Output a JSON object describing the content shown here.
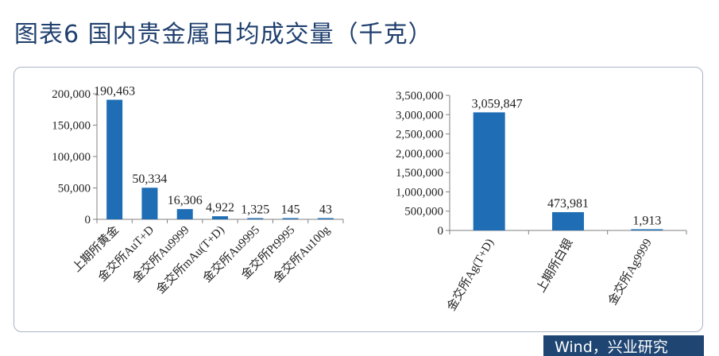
{
  "page": {
    "title": "图表6 国内贵金属日均成交量（千克）",
    "source": "Wind，兴业研究"
  },
  "colors": {
    "bar": "#1f6eb5",
    "axis": "#808080",
    "title": "#1f3f6e",
    "badge": "#1f4673"
  },
  "chart_data": [
    {
      "type": "bar",
      "categories": [
        "上期所黄金",
        "金交所AuT+D",
        "金交所Au9999",
        "金交所mAu(T+D)",
        "金交所Au9995",
        "金交所Pt9995",
        "金交所Au100g"
      ],
      "values": [
        190463,
        50334,
        16306,
        4922,
        1325,
        145,
        43
      ],
      "data_labels": [
        "190,463",
        "50,334",
        "16,306",
        "4,922",
        "1,325",
        "145",
        "43"
      ],
      "ylim": [
        0,
        200000
      ],
      "yticks": [
        0,
        50000,
        100000,
        150000,
        200000
      ],
      "ytick_labels": [
        "0",
        "50,000",
        "100,000",
        "150,000",
        "200,000"
      ],
      "grid": false,
      "legend": "none"
    },
    {
      "type": "bar",
      "categories": [
        "金交所Ag(T+D)",
        "上期所白银",
        "金交所Ag9999"
      ],
      "values": [
        3059847,
        473981,
        1913
      ],
      "data_labels": [
        "3,059,847",
        "473,981",
        "1,913"
      ],
      "ylim": [
        0,
        3500000
      ],
      "yticks": [
        0,
        500000,
        1000000,
        1500000,
        2000000,
        2500000,
        3000000,
        3500000
      ],
      "ytick_labels": [
        "0",
        "500,000",
        "1,000,000",
        "1,500,000",
        "2,000,000",
        "2,500,000",
        "3,000,000",
        "3,500,000"
      ],
      "grid": false,
      "legend": "none"
    }
  ]
}
